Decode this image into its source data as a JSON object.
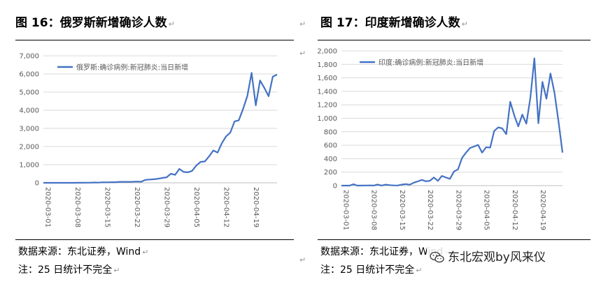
{
  "charts": [
    {
      "title": "图 16：俄罗斯新增确诊人数",
      "source": "数据来源：东北证券，Wind",
      "note": "注：25 日统计不完全"
    },
    {
      "title": "图 17：印度新增确诊人数",
      "source": "数据来源：东北证券，Wind",
      "note": "注：25 日统计不完全"
    }
  ],
  "watermark": "东北宏观by风来仪",
  "colors": {
    "line": "#4472C4",
    "grid": "#D9D9D9",
    "axis_text": "#595959"
  },
  "chart_data": [
    {
      "type": "line",
      "title": "",
      "xlabel": "",
      "ylabel": "",
      "legend": "top-left",
      "grid": true,
      "ylim": [
        0,
        7000
      ],
      "yticks": [
        "0",
        "1,000",
        "2,000",
        "3,000",
        "4,000",
        "5,000",
        "6,000",
        "7,000"
      ],
      "xtick_labels": [
        "2020-03-01",
        "2020-03-08",
        "2020-03-15",
        "2020-03-22",
        "2020-03-29",
        "2020-04-05",
        "2020-04-12",
        "2020-04-19"
      ],
      "x": [
        "2020-03-01",
        "2020-03-02",
        "2020-03-03",
        "2020-03-04",
        "2020-03-05",
        "2020-03-06",
        "2020-03-07",
        "2020-03-08",
        "2020-03-09",
        "2020-03-10",
        "2020-03-11",
        "2020-03-12",
        "2020-03-13",
        "2020-03-14",
        "2020-03-15",
        "2020-03-16",
        "2020-03-17",
        "2020-03-18",
        "2020-03-19",
        "2020-03-20",
        "2020-03-21",
        "2020-03-22",
        "2020-03-23",
        "2020-03-24",
        "2020-03-25",
        "2020-03-26",
        "2020-03-27",
        "2020-03-28",
        "2020-03-29",
        "2020-03-30",
        "2020-03-31",
        "2020-04-01",
        "2020-04-02",
        "2020-04-03",
        "2020-04-04",
        "2020-04-05",
        "2020-04-06",
        "2020-04-07",
        "2020-04-08",
        "2020-04-09",
        "2020-04-10",
        "2020-04-11",
        "2020-04-12",
        "2020-04-13",
        "2020-04-14",
        "2020-04-15",
        "2020-04-16",
        "2020-04-17",
        "2020-04-18",
        "2020-04-19",
        "2020-04-20",
        "2020-04-21",
        "2020-04-22",
        "2020-04-23",
        "2020-04-24",
        "2020-04-25"
      ],
      "series": [
        {
          "name": "俄罗斯:确诊病例:新冠肺炎:当日新增",
          "values": [
            0,
            0,
            0,
            0,
            0,
            0,
            0,
            0,
            5,
            3,
            8,
            6,
            20,
            12,
            30,
            25,
            33,
            35,
            52,
            54,
            53,
            57,
            71,
            57,
            163,
            182,
            196,
            228,
            270,
            302,
            500,
            440,
            771,
            601,
            582,
            658,
            954,
            1154,
            1175,
            1459,
            1786,
            1667,
            2186,
            2558,
            2774,
            3388,
            3448,
            4070,
            4785,
            6060,
            4268,
            5642,
            5236,
            4774,
            5849,
            5966
          ]
        }
      ]
    },
    {
      "type": "line",
      "title": "",
      "xlabel": "",
      "ylabel": "",
      "legend": "top-left",
      "grid": true,
      "ylim": [
        0,
        2000
      ],
      "yticks": [
        "0",
        "200",
        "400",
        "600",
        "800",
        "1,000",
        "1,200",
        "1,400",
        "1,600",
        "1,800",
        "2,000"
      ],
      "xtick_labels": [
        "2020-03-01",
        "2020-03-08",
        "2020-03-15",
        "2020-03-22",
        "2020-03-29",
        "2020-04-05",
        "2020-04-12",
        "2020-04-19"
      ],
      "x": [
        "2020-03-01",
        "2020-03-02",
        "2020-03-03",
        "2020-03-04",
        "2020-03-05",
        "2020-03-06",
        "2020-03-07",
        "2020-03-08",
        "2020-03-09",
        "2020-03-10",
        "2020-03-11",
        "2020-03-12",
        "2020-03-13",
        "2020-03-14",
        "2020-03-15",
        "2020-03-16",
        "2020-03-17",
        "2020-03-18",
        "2020-03-19",
        "2020-03-20",
        "2020-03-21",
        "2020-03-22",
        "2020-03-23",
        "2020-03-24",
        "2020-03-25",
        "2020-03-26",
        "2020-03-27",
        "2020-03-28",
        "2020-03-29",
        "2020-03-30",
        "2020-03-31",
        "2020-04-01",
        "2020-04-02",
        "2020-04-03",
        "2020-04-04",
        "2020-04-05",
        "2020-04-06",
        "2020-04-07",
        "2020-04-08",
        "2020-04-09",
        "2020-04-10",
        "2020-04-11",
        "2020-04-12",
        "2020-04-13",
        "2020-04-14",
        "2020-04-15",
        "2020-04-16",
        "2020-04-17",
        "2020-04-18",
        "2020-04-19",
        "2020-04-20",
        "2020-04-21",
        "2020-04-22",
        "2020-04-23",
        "2020-04-24",
        "2020-04-25"
      ],
      "series": [
        {
          "name": "印度:确诊病例:新冠肺炎:当日新增",
          "values": [
            0,
            0,
            0,
            20,
            0,
            1,
            2,
            3,
            1,
            16,
            1,
            15,
            7,
            3,
            2,
            14,
            23,
            13,
            44,
            63,
            85,
            64,
            71,
            120,
            70,
            144,
            120,
            100,
            210,
            240,
            410,
            490,
            560,
            580,
            605,
            490,
            570,
            565,
            810,
            865,
            850,
            765,
            1245,
            1040,
            880,
            1055,
            920,
            1300,
            1890,
            925,
            1540,
            1290,
            1665,
            1380,
            950,
            490
          ]
        }
      ]
    }
  ]
}
